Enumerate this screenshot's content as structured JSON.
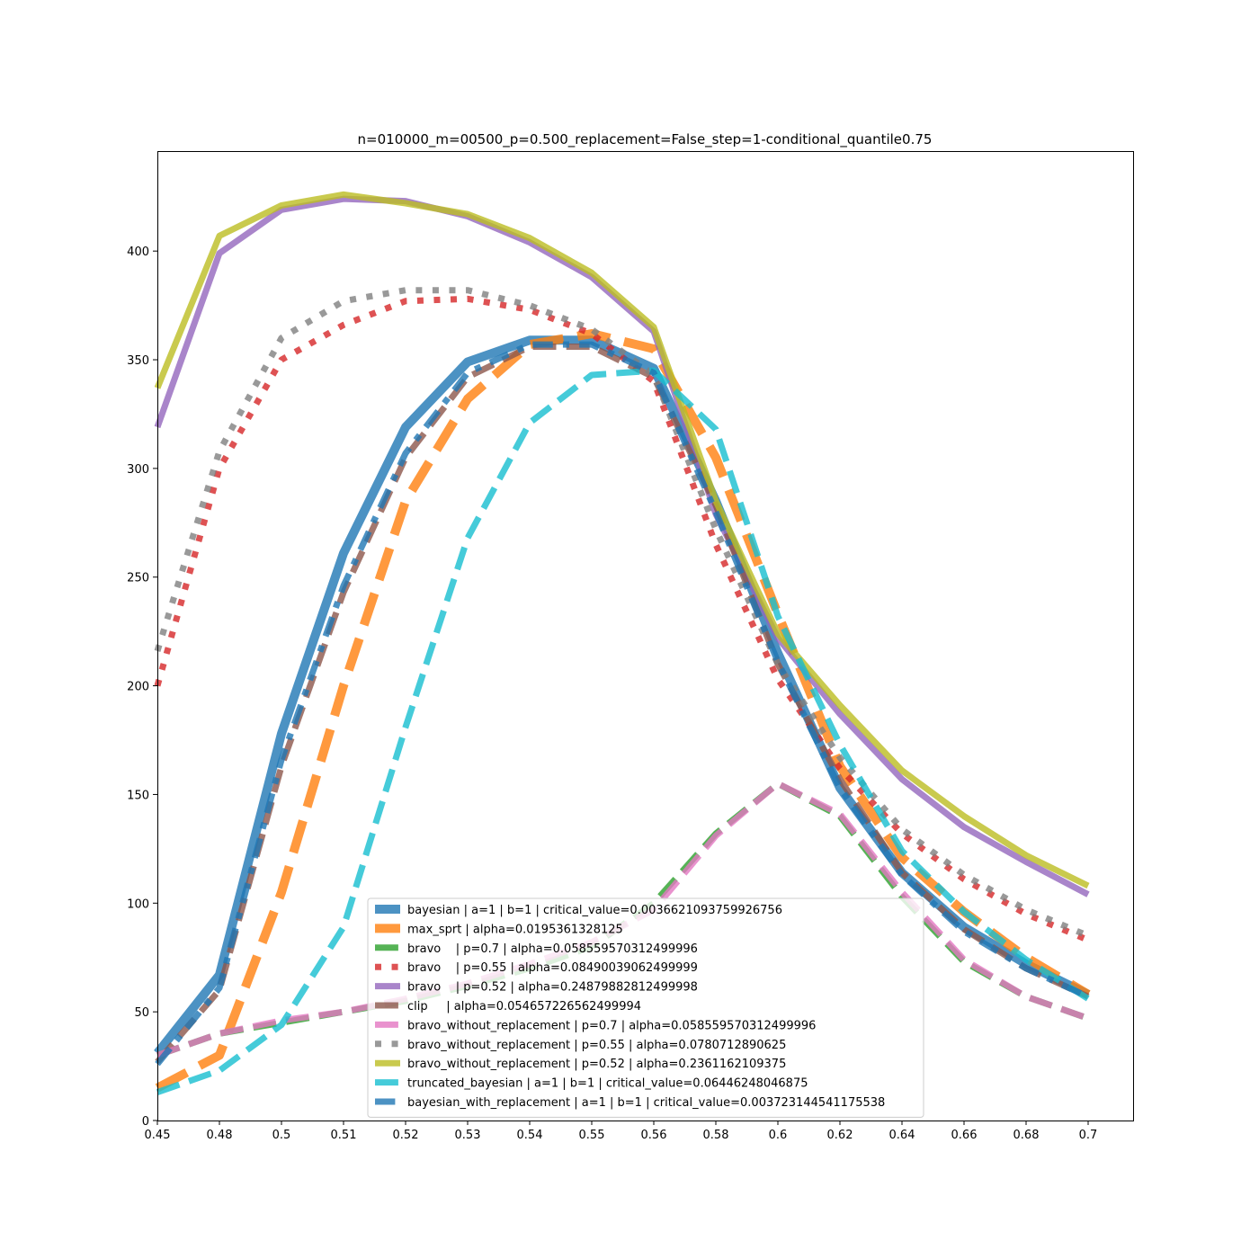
{
  "chart_data": {
    "type": "line",
    "title": "n=010000_m=00500_p=0.500_replacement=False_step=1-conditional_quantile0.75",
    "xlabel": "",
    "ylabel": "",
    "categories": [
      "0.45",
      "0.48",
      "0.5",
      "0.51",
      "0.52",
      "0.53",
      "0.54",
      "0.55",
      "0.56",
      "0.58",
      "0.6",
      "0.62",
      "0.64",
      "0.66",
      "0.68",
      "0.7"
    ],
    "y_ticks": [
      0,
      50,
      100,
      150,
      200,
      250,
      300,
      350,
      400
    ],
    "ylim": [
      0,
      446
    ],
    "grid": false,
    "legend_position": "lower-center",
    "series": [
      {
        "name": "bayesian | a=1 | b=1 | critical_value=0.0036621093759926756",
        "color": "#1f77b4",
        "style": "solid",
        "width": 10,
        "values": [
          31,
          67,
          178,
          261,
          319,
          349,
          359,
          359,
          346,
          285,
          215,
          153,
          114,
          89,
          72,
          58
        ]
      },
      {
        "name": "max_sprt | alpha=0.0195361328125",
        "color": "#ff7f0e",
        "style": "dashed",
        "width": 10,
        "values": [
          15,
          30,
          105,
          200,
          285,
          332,
          357,
          362,
          355,
          305,
          233,
          163,
          121,
          96,
          75,
          58
        ]
      },
      {
        "name": "bravo    | p=0.7 | alpha=0.058559570312499996",
        "color": "#2ca02c",
        "style": "dashed",
        "width": 7,
        "values": [
          30,
          40,
          45,
          50,
          55,
          62,
          70,
          80,
          100,
          132,
          155,
          140,
          103,
          73,
          57,
          47
        ]
      },
      {
        "name": "bravo    | p=0.55 | alpha=0.08490039062499999",
        "color": "#d62728",
        "style": "dotted",
        "width": 7,
        "values": [
          200,
          300,
          350,
          366,
          377,
          378,
          373,
          362,
          340,
          265,
          203,
          162,
          132,
          111,
          95,
          83
        ]
      },
      {
        "name": "bravo    | p=0.52 | alpha=0.24879882812499998",
        "color": "#9467bd",
        "style": "solid",
        "width": 7,
        "values": [
          319,
          399,
          419,
          424,
          423,
          416,
          404,
          388,
          363,
          279,
          222,
          187,
          157,
          135,
          119,
          104
        ]
      },
      {
        "name": "clip     | alpha=0.054657226562499994",
        "color": "#8c564b",
        "style": "dashed",
        "width": 7,
        "values": [
          27,
          60,
          163,
          243,
          305,
          342,
          356,
          356,
          342,
          283,
          210,
          157,
          114,
          88,
          70,
          57
        ]
      },
      {
        "name": "bravo_without_replacement | p=0.7 | alpha=0.058559570312499996",
        "color": "#e377c2",
        "style": "dashed",
        "width": 7,
        "values": [
          30,
          40,
          46,
          50,
          56,
          63,
          72,
          82,
          97,
          131,
          155,
          141,
          105,
          74,
          57,
          47
        ]
      },
      {
        "name": "bravo_without_replacement | p=0.55 | alpha=0.0780712890625",
        "color": "#7f7f7f",
        "style": "dotted",
        "width": 7,
        "values": [
          216,
          308,
          360,
          377,
          382,
          382,
          375,
          364,
          343,
          272,
          210,
          167,
          134,
          113,
          97,
          85
        ]
      },
      {
        "name": "bravo_without_replacement | p=0.52 | alpha=0.2361162109375",
        "color": "#bcbd22",
        "style": "solid",
        "width": 7,
        "values": [
          337,
          407,
          421,
          426,
          422,
          417,
          406,
          390,
          365,
          285,
          224,
          191,
          161,
          140,
          122,
          108
        ]
      },
      {
        "name": "truncated_bayesian | a=1 | b=1 | critical_value=0.06446248046875",
        "color": "#17becf",
        "style": "dashed",
        "width": 7,
        "values": [
          13,
          23,
          44,
          89,
          181,
          268,
          321,
          343,
          345,
          318,
          232,
          173,
          124,
          96,
          74,
          56
        ]
      },
      {
        "name": "bayesian_with_replacement | a=1 | b=1 | critical_value=0.003723144541175538",
        "color": "#1f77b4",
        "style": "dashdot",
        "width": 7,
        "values": [
          26,
          61,
          166,
          246,
          307,
          344,
          357,
          357,
          344,
          280,
          211,
          153,
          113,
          87,
          70,
          57
        ]
      }
    ]
  }
}
